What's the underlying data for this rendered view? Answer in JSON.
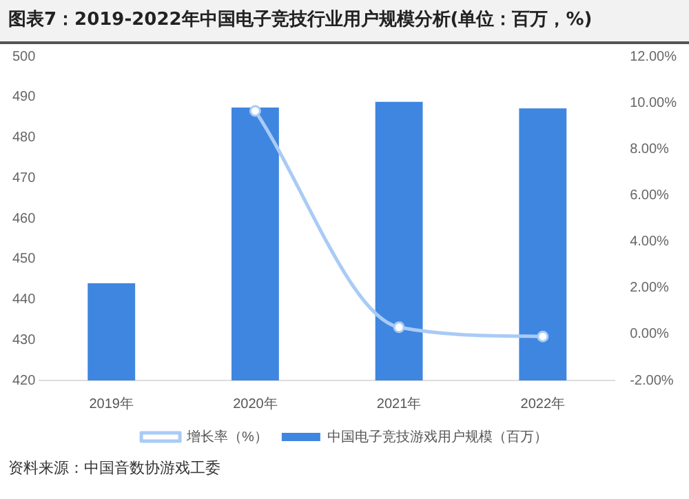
{
  "chart_data": {
    "type": "bar",
    "title": "图表7：2019-2022年中国电子竞技行业用户规模分析(单位：百万，%)",
    "categories": [
      "2019年",
      "2020年",
      "2021年",
      "2022年"
    ],
    "series": [
      {
        "name": "中国电子竞技游戏用户规模（百万）",
        "color": "#3f86e0",
        "values": [
          444,
          487.4,
          488.8,
          487.2
        ]
      },
      {
        "name": "增长率（%）",
        "type": "line",
        "axis": "y2",
        "color": "#a9cbf5",
        "values": [
          null,
          9.65,
          0.3,
          -0.1
        ]
      }
    ],
    "ylim": [
      420,
      500
    ],
    "yticks": [
      420,
      430,
      440,
      450,
      460,
      470,
      480,
      490,
      500
    ],
    "y2lim": [
      -2,
      12
    ],
    "y2ticks": [
      {
        "value": -2,
        "label": "-2.00%"
      },
      {
        "value": 0,
        "label": "0.00%"
      },
      {
        "value": 2,
        "label": "2.00%"
      },
      {
        "value": 4,
        "label": "4.00%"
      },
      {
        "value": 6,
        "label": "6.00%"
      },
      {
        "value": 8,
        "label": "8.00%"
      },
      {
        "value": 10,
        "label": "10.00%"
      },
      {
        "value": 12,
        "label": "12.00%"
      }
    ],
    "grid": false,
    "legend": "bottom",
    "marker": "circle",
    "annotations": [
      "资料来源：中国音数协游戏工委"
    ]
  }
}
